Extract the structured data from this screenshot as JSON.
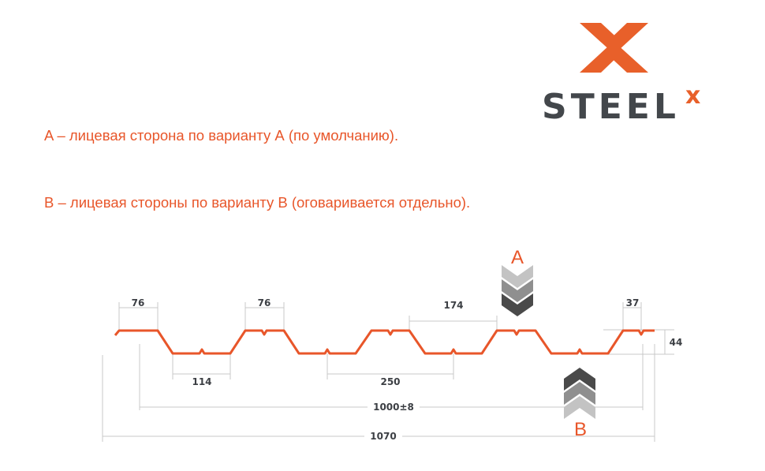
{
  "logo": {
    "brand": "STEEL",
    "superscript": "x",
    "colors": {
      "orange": "#e8602a",
      "gray": "#43474b"
    }
  },
  "descriptions": [
    "A – лицевая сторона по варианту А (по умолчанию).",
    "B – лицевая стороны по варианту В (оговаривается отдельно)."
  ],
  "diagram": {
    "face_a_label": "A",
    "face_b_label": "B",
    "dimensions": {
      "top_flat_1": "76",
      "top_flat_2": "76",
      "bottom_flat": "114",
      "gap_174": "174",
      "pitch": "250",
      "edge": "37",
      "height": "44",
      "working_width": "1000±8",
      "total_width": "1070"
    },
    "profile_color": "#e8562a",
    "chevron_colors": [
      "#bdbdbd",
      "#8f8f8f",
      "#4a4a4a"
    ]
  }
}
